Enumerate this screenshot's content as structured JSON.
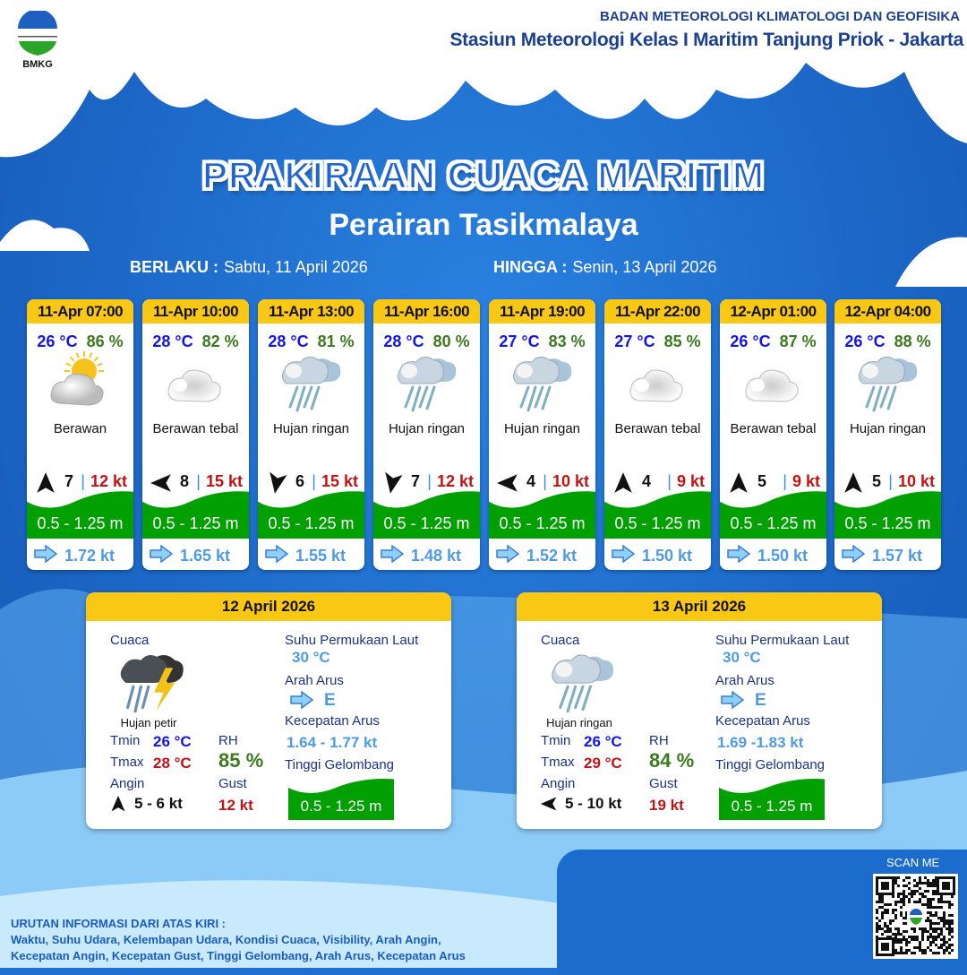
{
  "org": {
    "name": "BADAN METEOROLOGI KLIMATOLOGI DAN GEOFISIKA",
    "station": "Stasiun Meteorologi Kelas I Maritim Tanjung Priok - Jakarta",
    "logo_text": "BMKG"
  },
  "title": "PRAKIRAAN CUACA MARITIM",
  "subtitle": "Perairan Tasikmalaya",
  "valid": {
    "from_label": "BERLAKU :",
    "from": "Sabtu, 11 April 2026",
    "to_label": "HINGGA :",
    "to": "Senin, 13 April 2026"
  },
  "colors": {
    "header": "#f9c815",
    "temp": "#1414f0",
    "rh": "#3b7a1d",
    "gust": "#c41212",
    "wave": "#00a000",
    "current": "#4f9ae8"
  },
  "forecasts": [
    {
      "time": "11-Apr 07:00",
      "temp": "26 °C",
      "rh": "86 %",
      "icon": "partly-cloudy",
      "cond": "Berawan",
      "wind_arrow": "up",
      "wind": "7",
      "gust": "12 kt",
      "wave": "0.5 - 1.25 m",
      "current": "1.72 kt"
    },
    {
      "time": "11-Apr 10:00",
      "temp": "28 °C",
      "rh": "82 %",
      "icon": "cloudy",
      "cond": "Berawan tebal",
      "wind_arrow": "left",
      "wind": "8",
      "gust": "15 kt",
      "wave": "0.5 - 1.25 m",
      "current": "1.65 kt"
    },
    {
      "time": "11-Apr 13:00",
      "temp": "28 °C",
      "rh": "81 %",
      "icon": "light-rain",
      "cond": "Hujan ringan",
      "wind_arrow": "down",
      "wind": "6",
      "gust": "15 kt",
      "wave": "0.5 - 1.25 m",
      "current": "1.55 kt"
    },
    {
      "time": "11-Apr 16:00",
      "temp": "28 °C",
      "rh": "80 %",
      "icon": "light-rain",
      "cond": "Hujan ringan",
      "wind_arrow": "down",
      "wind": "7",
      "gust": "12 kt",
      "wave": "0.5 - 1.25 m",
      "current": "1.48 kt"
    },
    {
      "time": "11-Apr 19:00",
      "temp": "27 °C",
      "rh": "83 %",
      "icon": "light-rain",
      "cond": "Hujan ringan",
      "wind_arrow": "left",
      "wind": "4",
      "gust": "10 kt",
      "wave": "0.5 - 1.25 m",
      "current": "1.52 kt"
    },
    {
      "time": "11-Apr 22:00",
      "temp": "27 °C",
      "rh": "85 %",
      "icon": "cloudy",
      "cond": "Berawan tebal",
      "wind_arrow": "up",
      "wind": "4",
      "gust": "9 kt",
      "wave": "0.5 - 1.25 m",
      "current": "1.50 kt"
    },
    {
      "time": "12-Apr 01:00",
      "temp": "26 °C",
      "rh": "87 %",
      "icon": "cloudy",
      "cond": "Berawan tebal",
      "wind_arrow": "up",
      "wind": "5",
      "gust": "9 kt",
      "wave": "0.5 - 1.25 m",
      "current": "1.50 kt"
    },
    {
      "time": "12-Apr 04:00",
      "temp": "26 °C",
      "rh": "88 %",
      "icon": "light-rain",
      "cond": "Hujan ringan",
      "wind_arrow": "up",
      "wind": "5",
      "gust": "10 kt",
      "wave": "0.5 - 1.25 m",
      "current": "1.57 kt"
    }
  ],
  "labels": {
    "weather": "Cuaca",
    "sst": "Suhu Permukaan Laut",
    "cur_dir": "Arah Arus",
    "cur_speed": "Kecepatan Arus",
    "wave": "Tinggi Gelombang",
    "tmin": "Tmin",
    "tmax": "Tmax",
    "rh": "RH",
    "wind": "Angin",
    "gust": "Gust"
  },
  "daily": [
    {
      "date": "12 April 2026",
      "icon": "thunderstorm",
      "cond": "Hujan petir",
      "tmin": "26 °C",
      "tmax": "28 °C",
      "rh": "85 %",
      "wind_arrow": "up",
      "wind": "5 - 6 kt",
      "gust": "12 kt",
      "sst": "30 °C",
      "cur_dir": "E",
      "cur_speed": "1.64  - 1.77 kt",
      "wave": "0.5 - 1.25 m"
    },
    {
      "date": "13 April 2026",
      "icon": "light-rain",
      "cond": "Hujan ringan",
      "tmin": "26 °C",
      "tmax": "29 °C",
      "rh": "84 %",
      "wind_arrow": "left",
      "wind": "5 - 10 kt",
      "gust": "19 kt",
      "sst": "30 °C",
      "cur_dir": "E",
      "cur_speed": "1.69 -1.83 kt",
      "wave": "0.5 - 1.25 m"
    }
  ],
  "footer": {
    "heading": "URUTAN INFORMASI DARI ATAS KIRI :",
    "line1": "Waktu, Suhu Udara, Kelembapan Udara, Kondisi Cuaca, Visibility, Arah Angin,",
    "line2": "Kecepatan Angin, Kecepatan Gust, Tinggi Gelombang, Arah Arus, Kecepatan Arus"
  },
  "qr": {
    "label": "SCAN ME"
  }
}
